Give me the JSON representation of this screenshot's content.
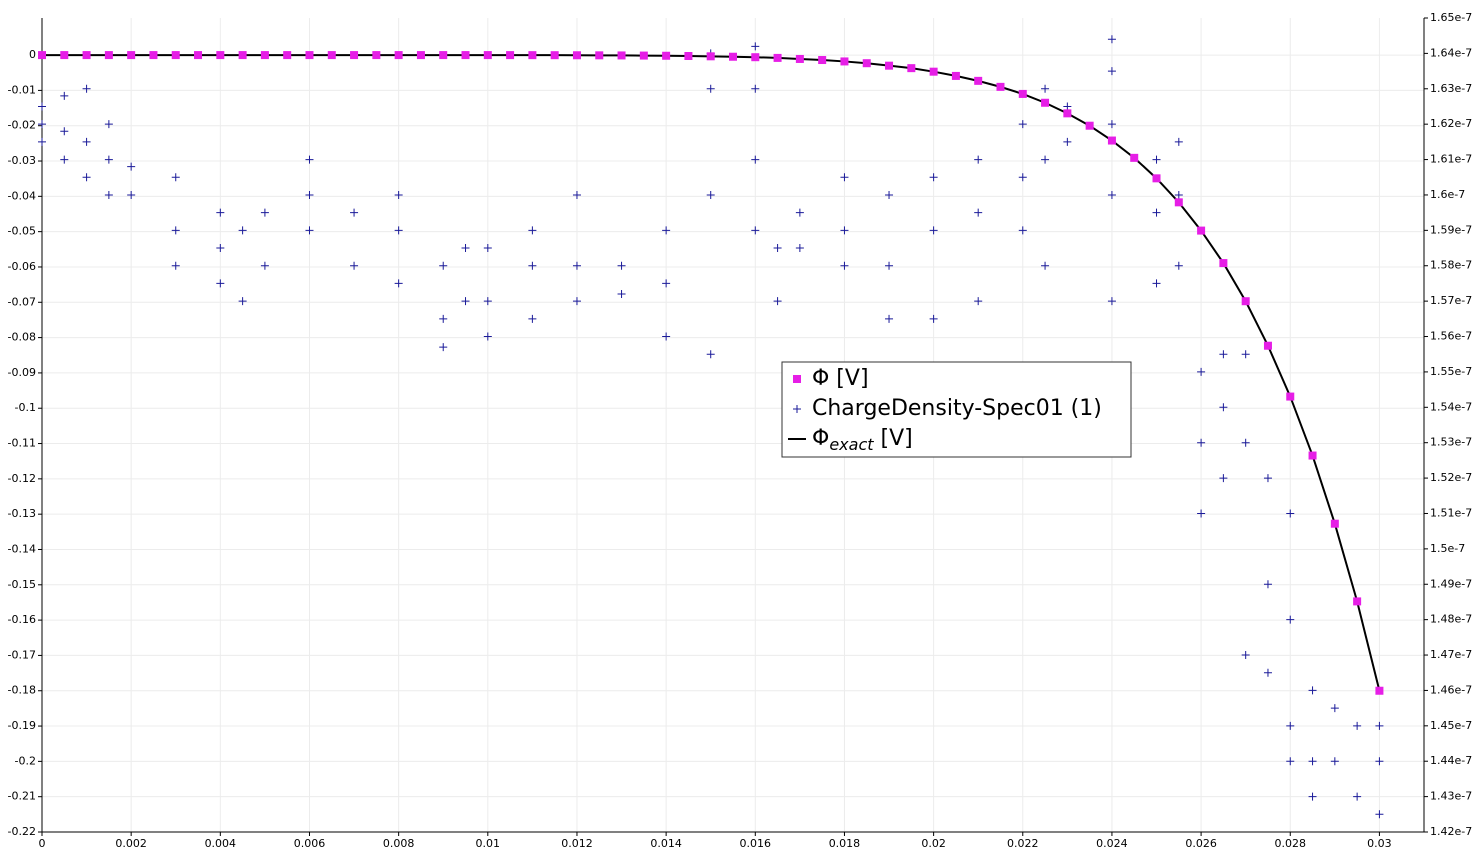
{
  "chart_data": {
    "type": "line",
    "xlim": [
      0,
      0.031
    ],
    "ylim": [
      -0.22,
      0.0105
    ],
    "y2lim": [
      1.42e-07,
      1.65e-07
    ],
    "xticks": [
      0,
      0.002,
      0.004,
      0.006,
      0.008,
      0.01,
      0.012,
      0.014,
      0.016,
      0.018,
      0.02,
      0.022,
      0.024,
      0.026,
      0.028,
      0.03
    ],
    "yticks": [
      0,
      -0.01,
      -0.02,
      -0.03,
      -0.04,
      -0.05,
      -0.06,
      -0.07,
      -0.08,
      -0.09,
      -0.1,
      -0.11,
      -0.12,
      -0.13,
      -0.14,
      -0.15,
      -0.16,
      -0.17,
      -0.18,
      -0.19,
      -0.2,
      -0.21,
      -0.22
    ],
    "y2ticks": [
      1.42e-07,
      1.43e-07,
      1.44e-07,
      1.45e-07,
      1.46e-07,
      1.47e-07,
      1.48e-07,
      1.49e-07,
      1.5e-07,
      1.51e-07,
      1.52e-07,
      1.53e-07,
      1.54e-07,
      1.55e-07,
      1.56e-07,
      1.57e-07,
      1.58e-07,
      1.59e-07,
      1.6e-07,
      1.61e-07,
      1.62e-07,
      1.63e-07,
      1.64e-07,
      1.65e-07
    ],
    "grid": true,
    "x": [
      0,
      0.0005,
      0.001,
      0.0015,
      0.002,
      0.0025,
      0.003,
      0.0035,
      0.004,
      0.0045,
      0.005,
      0.0055,
      0.006,
      0.0065,
      0.007,
      0.0075,
      0.008,
      0.0085,
      0.009,
      0.0095,
      0.01,
      0.0105,
      0.011,
      0.0115,
      0.012,
      0.0125,
      0.013,
      0.0135,
      0.014,
      0.0145,
      0.015,
      0.0155,
      0.016,
      0.0165,
      0.017,
      0.0175,
      0.018,
      0.0185,
      0.019,
      0.0195,
      0.02,
      0.0205,
      0.021,
      0.0215,
      0.022,
      0.0225,
      0.023,
      0.0235,
      0.024,
      0.0245,
      0.025,
      0.0255,
      0.026,
      0.0265,
      0.027,
      0.0275,
      0.028,
      0.0285,
      0.029,
      0.0295,
      0.03
    ],
    "series": [
      {
        "name": "Φ [V]",
        "style": "markers",
        "color": "#e61ee6",
        "values": [
          0,
          0,
          0,
          0,
          0,
          0,
          0,
          0,
          0,
          0,
          0,
          0,
          0,
          0,
          0,
          0,
          0,
          0,
          0,
          0,
          0,
          -1e-05,
          -2e-05,
          -3e-05,
          -5e-05,
          -7e-05,
          -0.0001,
          -0.00014,
          -0.00019,
          -0.00026,
          -0.00035,
          -0.00047,
          -0.0006,
          -0.0008,
          -0.0011,
          -0.0014,
          -0.0018,
          -0.0023,
          -0.003,
          -0.0037,
          -0.0047,
          -0.0059,
          -0.0073,
          -0.009,
          -0.011,
          -0.0135,
          -0.0165,
          -0.02,
          -0.0242,
          -0.0291,
          -0.0349,
          -0.0417,
          -0.0497,
          -0.0589,
          -0.0697,
          -0.0823,
          -0.0967,
          -0.1134,
          -0.1327,
          -0.1547,
          -0.18
        ]
      },
      {
        "name": "ChargeDensity-Spec01 (1)",
        "style": "crosses",
        "color": "#1a1a99",
        "axis": "y2",
        "x": [
          0,
          0,
          0,
          0.0005,
          0.0005,
          0.0005,
          0.001,
          0.001,
          0.001,
          0.0015,
          0.0015,
          0.0015,
          0.002,
          0.002,
          0.003,
          0.003,
          0.003,
          0.004,
          0.004,
          0.004,
          0.0045,
          0.0045,
          0.005,
          0.005,
          0.006,
          0.006,
          0.006,
          0.007,
          0.007,
          0.008,
          0.008,
          0.008,
          0.009,
          0.009,
          0.009,
          0.0095,
          0.0095,
          0.01,
          0.01,
          0.01,
          0.011,
          0.011,
          0.011,
          0.012,
          0.012,
          0.012,
          0.013,
          0.013,
          0.014,
          0.014,
          0.014,
          0.015,
          0.015,
          0.015,
          0.015,
          0.016,
          0.016,
          0.016,
          0.016,
          0.0165,
          0.0165,
          0.017,
          0.017,
          0.018,
          0.018,
          0.018,
          0.019,
          0.019,
          0.019,
          0.02,
          0.02,
          0.02,
          0.021,
          0.021,
          0.021,
          0.022,
          0.022,
          0.022,
          0.0225,
          0.0225,
          0.0225,
          0.023,
          0.023,
          0.024,
          0.024,
          0.024,
          0.024,
          0.024,
          0.025,
          0.025,
          0.025,
          0.0255,
          0.0255,
          0.0255,
          0.026,
          0.026,
          0.026,
          0.0265,
          0.0265,
          0.0265,
          0.027,
          0.027,
          0.027,
          0.0275,
          0.0275,
          0.0275,
          0.028,
          0.028,
          0.028,
          0.028,
          0.0285,
          0.0285,
          0.0285,
          0.029,
          0.029,
          0.0295,
          0.0295,
          0.03,
          0.03,
          0.03
        ],
        "values": [
          1.62e-07,
          1.615e-07,
          1.625e-07,
          1.618e-07,
          1.61e-07,
          1.628e-07,
          1.615e-07,
          1.605e-07,
          1.63e-07,
          1.61e-07,
          1.6e-07,
          1.62e-07,
          1.608e-07,
          1.6e-07,
          1.605e-07,
          1.59e-07,
          1.58e-07,
          1.595e-07,
          1.585e-07,
          1.575e-07,
          1.59e-07,
          1.57e-07,
          1.595e-07,
          1.58e-07,
          1.6e-07,
          1.59e-07,
          1.61e-07,
          1.595e-07,
          1.58e-07,
          1.59e-07,
          1.575e-07,
          1.6e-07,
          1.58e-07,
          1.565e-07,
          1.557e-07,
          1.585e-07,
          1.57e-07,
          1.585e-07,
          1.57e-07,
          1.56e-07,
          1.58e-07,
          1.565e-07,
          1.59e-07,
          1.58e-07,
          1.57e-07,
          1.6e-07,
          1.58e-07,
          1.572e-07,
          1.59e-07,
          1.56e-07,
          1.575e-07,
          1.63e-07,
          1.6e-07,
          1.555e-07,
          1.64e-07,
          1.63e-07,
          1.61e-07,
          1.59e-07,
          1.642e-07,
          1.585e-07,
          1.57e-07,
          1.595e-07,
          1.585e-07,
          1.605e-07,
          1.59e-07,
          1.58e-07,
          1.6e-07,
          1.58e-07,
          1.565e-07,
          1.605e-07,
          1.59e-07,
          1.565e-07,
          1.61e-07,
          1.595e-07,
          1.57e-07,
          1.62e-07,
          1.605e-07,
          1.59e-07,
          1.63e-07,
          1.61e-07,
          1.58e-07,
          1.625e-07,
          1.615e-07,
          1.635e-07,
          1.62e-07,
          1.6e-07,
          1.57e-07,
          1.644e-07,
          1.61e-07,
          1.595e-07,
          1.575e-07,
          1.615e-07,
          1.6e-07,
          1.58e-07,
          1.55e-07,
          1.53e-07,
          1.51e-07,
          1.555e-07,
          1.54e-07,
          1.52e-07,
          1.555e-07,
          1.53e-07,
          1.47e-07,
          1.52e-07,
          1.49e-07,
          1.465e-07,
          1.51e-07,
          1.48e-07,
          1.45e-07,
          1.44e-07,
          1.46e-07,
          1.44e-07,
          1.43e-07,
          1.455e-07,
          1.44e-07,
          1.45e-07,
          1.43e-07,
          1.45e-07,
          1.44e-07,
          1.425e-07
        ]
      },
      {
        "name": "Φexact [V]",
        "subscript": "exact",
        "style": "line",
        "color": "#000000",
        "values": [
          0,
          0,
          0,
          0,
          0,
          0,
          0,
          0,
          0,
          0,
          0,
          0,
          0,
          0,
          0,
          0,
          0,
          0,
          0,
          0,
          0,
          -1e-05,
          -2e-05,
          -3e-05,
          -5e-05,
          -7e-05,
          -0.0001,
          -0.00014,
          -0.00019,
          -0.00026,
          -0.00035,
          -0.00047,
          -0.0006,
          -0.0008,
          -0.0011,
          -0.0014,
          -0.0018,
          -0.0023,
          -0.003,
          -0.0037,
          -0.0047,
          -0.0059,
          -0.0073,
          -0.009,
          -0.011,
          -0.0135,
          -0.0165,
          -0.02,
          -0.0242,
          -0.0291,
          -0.0349,
          -0.0417,
          -0.0497,
          -0.0589,
          -0.0697,
          -0.0823,
          -0.0967,
          -0.1134,
          -0.1327,
          -0.1547,
          -0.18
        ]
      }
    ]
  }
}
